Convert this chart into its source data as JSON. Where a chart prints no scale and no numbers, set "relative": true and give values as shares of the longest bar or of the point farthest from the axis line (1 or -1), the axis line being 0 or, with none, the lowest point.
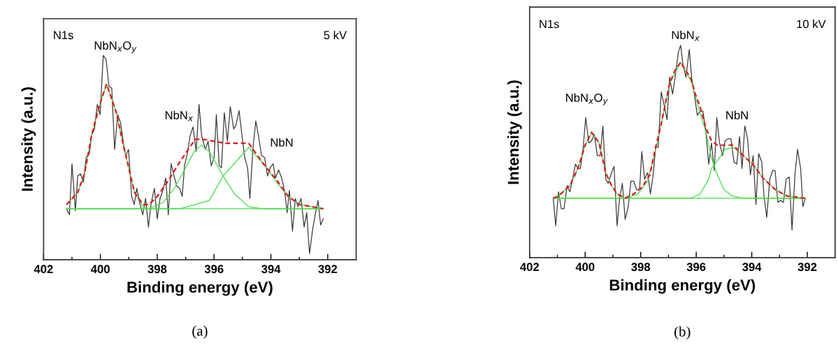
{
  "chart_data": [
    {
      "type": "line",
      "relative": true,
      "xlabel": "Binding energy (eV)",
      "ylabel": "Intensity (a.u.)",
      "xlim": [
        402,
        391
      ],
      "xticks": [
        402,
        {
          "value": 401,
          "label": null
        },
        400,
        {
          "value": 399,
          "label": null
        },
        398,
        {
          "value": 397,
          "label": null
        },
        396,
        {
          "value": 395,
          "label": null
        },
        394,
        {
          "value": 393,
          "label": null
        },
        392
      ],
      "tick_labels": "x",
      "grid": false,
      "legend": false,
      "marker": "none",
      "annotations": [
        "N1s",
        "5 kV",
        "(a)",
        "NbN$_{x}$O$_{y}$",
        "NbN$_{x}$",
        "NbN"
      ],
      "series": [
        {
          "color": "#3a3a3a",
          "line_style": "solid",
          "x": [
            401.19,
            401.09,
            401.0,
            400.88,
            400.8,
            400.7,
            400.6,
            400.5,
            400.39,
            400.31,
            400.21,
            400.11,
            400.01,
            399.9,
            399.8,
            399.7,
            399.6,
            399.5,
            399.39,
            399.29,
            399.19,
            399.11,
            399.01,
            398.9,
            398.81,
            398.72,
            398.62,
            398.51,
            398.41,
            398.31,
            398.21,
            398.1,
            398.0,
            397.9,
            397.8,
            397.7,
            397.61,
            397.51,
            397.41,
            397.31,
            397.21,
            397.12,
            397.04,
            396.94,
            396.84,
            396.74,
            396.63,
            396.53,
            396.44,
            396.31,
            396.21,
            396.1,
            396.0,
            395.92,
            395.82,
            395.74,
            395.64,
            395.53,
            395.43,
            395.31,
            395.23,
            395.12,
            395.02,
            394.92,
            394.82,
            394.74,
            394.63,
            394.53,
            394.43,
            394.33,
            394.22,
            394.12,
            394.03,
            393.92,
            393.84,
            393.73,
            393.62,
            393.51,
            393.43,
            393.35,
            393.24,
            393.14,
            393.05,
            392.94,
            392.83,
            392.74,
            392.64,
            392.53,
            392.43,
            392.34,
            392.25,
            392.16
          ],
          "values": [
            0.25,
            0.22,
            0.47,
            0.24,
            0.41,
            0.42,
            0.38,
            0.5,
            0.52,
            0.61,
            0.64,
            0.76,
            0.71,
            1.0,
            0.98,
            0.85,
            0.84,
            0.54,
            0.71,
            0.67,
            0.57,
            0.51,
            0.54,
            0.31,
            0.27,
            0.35,
            0.28,
            0.22,
            0.3,
            0.16,
            0.28,
            0.35,
            0.2,
            0.3,
            0.34,
            0.4,
            0.22,
            0.47,
            0.41,
            0.36,
            0.35,
            0.31,
            0.46,
            0.52,
            0.61,
            0.65,
            0.53,
            0.76,
            0.61,
            0.54,
            0.58,
            0.46,
            0.5,
            0.71,
            0.46,
            0.45,
            0.72,
            0.58,
            0.75,
            0.64,
            0.66,
            0.73,
            0.61,
            0.5,
            0.45,
            0.3,
            0.55,
            0.68,
            0.6,
            0.51,
            0.5,
            0.41,
            0.45,
            0.47,
            0.4,
            0.44,
            0.4,
            0.33,
            0.23,
            0.34,
            0.14,
            0.3,
            0.26,
            0.3,
            0.16,
            0.23,
            0.03,
            0.15,
            0.23,
            0.29,
            0.17,
            0.2
          ]
        },
        {
          "color": "#44dd44",
          "line_style": "solid",
          "x": [
            401.19,
            400.8,
            400.56,
            400.31,
            400.0,
            399.78,
            399.44,
            399.19,
            398.8,
            398.5,
            398.3,
            392.16
          ],
          "values": [
            0.27,
            0.33,
            0.42,
            0.61,
            0.77,
            0.86,
            0.72,
            0.56,
            0.33,
            0.26,
            0.25,
            0.25
          ]
        },
        {
          "color": "#44dd44",
          "line_style": "solid",
          "x": [
            401.19,
            398.3,
            397.8,
            397.4,
            397.0,
            396.7,
            396.45,
            396.17,
            395.68,
            395.27,
            394.78,
            394.3,
            392.16
          ],
          "values": [
            0.25,
            0.25,
            0.28,
            0.35,
            0.45,
            0.53,
            0.56,
            0.53,
            0.41,
            0.32,
            0.26,
            0.25,
            0.25
          ]
        },
        {
          "color": "#44dd44",
          "line_style": "solid",
          "x": [
            401.19,
            397.2,
            396.66,
            396.17,
            395.68,
            394.78,
            394.21,
            393.8,
            393.39,
            392.98,
            392.16
          ],
          "values": [
            0.25,
            0.25,
            0.27,
            0.29,
            0.41,
            0.55,
            0.46,
            0.38,
            0.31,
            0.27,
            0.25
          ]
        },
        {
          "color": "#e8141a",
          "line_style": "dashed",
          "x": [
            401.19,
            400.8,
            400.56,
            400.31,
            400.0,
            399.78,
            399.44,
            399.19,
            398.8,
            398.5,
            398.29,
            398.0,
            397.6,
            397.2,
            396.66,
            396.41,
            395.6,
            394.78,
            394.21,
            393.8,
            393.39,
            392.98,
            392.16
          ],
          "values": [
            0.27,
            0.33,
            0.42,
            0.61,
            0.77,
            0.86,
            0.72,
            0.56,
            0.33,
            0.27,
            0.27,
            0.31,
            0.39,
            0.48,
            0.59,
            0.59,
            0.57,
            0.57,
            0.46,
            0.39,
            0.31,
            0.27,
            0.25
          ]
        }
      ]
    },
    {
      "type": "line",
      "relative": true,
      "xlabel": "Binding energy (eV)",
      "ylabel": "Intensity (a.u.)",
      "xlim": [
        402,
        391
      ],
      "xticks": [
        402,
        {
          "value": 401,
          "label": null
        },
        400,
        {
          "value": 399,
          "label": null
        },
        398,
        {
          "value": 397,
          "label": null
        },
        396,
        {
          "value": 395,
          "label": null
        },
        394,
        {
          "value": 393,
          "label": null
        },
        392
      ],
      "tick_labels": "x",
      "grid": false,
      "legend": false,
      "marker": "none",
      "annotations": [
        "N1s",
        "10 kV",
        "(b)",
        "NbN$_{x}$O$_{y}$",
        "NbN$_{x}$",
        "NbN"
      ],
      "series": [
        {
          "color": "#3a3a3a",
          "line_style": "solid",
          "x": [
            401.15,
            401.06,
            400.96,
            400.86,
            400.76,
            400.65,
            400.55,
            400.45,
            400.35,
            400.26,
            400.17,
            400.07,
            399.98,
            399.87,
            399.77,
            399.67,
            399.56,
            399.46,
            399.36,
            399.26,
            399.17,
            399.05,
            398.96,
            398.85,
            398.76,
            398.66,
            398.56,
            398.45,
            398.35,
            398.25,
            398.15,
            398.04,
            397.96,
            397.86,
            397.75,
            397.65,
            397.56,
            397.46,
            397.37,
            397.26,
            397.16,
            397.05,
            396.96,
            396.85,
            396.77,
            396.64,
            396.56,
            396.48,
            396.37,
            396.25,
            396.16,
            396.07,
            395.96,
            395.86,
            395.76,
            395.65,
            395.55,
            395.45,
            395.35,
            395.26,
            395.16,
            395.05,
            394.96,
            394.86,
            394.75,
            394.64,
            394.54,
            394.44,
            394.35,
            394.25,
            394.15,
            394.05,
            393.95,
            393.85,
            393.75,
            393.64,
            393.56,
            393.46,
            393.35,
            393.25,
            393.16,
            393.06,
            392.96,
            392.86,
            392.76,
            392.65,
            392.55,
            392.44,
            392.35,
            392.24,
            392.16,
            392.07
          ],
          "values": [
            0.28,
            0.15,
            0.31,
            0.23,
            0.23,
            0.34,
            0.31,
            0.37,
            0.44,
            0.42,
            0.42,
            0.52,
            0.66,
            0.54,
            0.55,
            0.58,
            0.48,
            0.48,
            0.62,
            0.37,
            0.35,
            0.4,
            0.43,
            0.15,
            0.28,
            0.35,
            0.18,
            0.24,
            0.36,
            0.36,
            0.32,
            0.32,
            0.5,
            0.37,
            0.4,
            0.3,
            0.38,
            0.52,
            0.52,
            0.78,
            0.72,
            0.65,
            0.85,
            0.77,
            0.84,
            0.97,
            1.0,
            0.91,
            0.85,
            0.98,
            0.84,
            0.77,
            0.67,
            0.69,
            0.69,
            0.59,
            0.44,
            0.54,
            0.41,
            0.66,
            0.54,
            0.48,
            0.55,
            0.56,
            0.56,
            0.45,
            0.44,
            0.57,
            0.42,
            0.62,
            0.56,
            0.39,
            0.48,
            0.25,
            0.49,
            0.45,
            0.29,
            0.19,
            0.37,
            0.41,
            0.41,
            0.26,
            0.27,
            0.26,
            0.37,
            0.38,
            0.13,
            0.4,
            0.51,
            0.42,
            0.24,
            0.28
          ]
        },
        {
          "color": "#44dd44",
          "line_style": "solid",
          "x": [
            401.15,
            400.96,
            400.55,
            400.26,
            400.0,
            399.77,
            399.5,
            399.26,
            399.05,
            398.85,
            398.56,
            392.07
          ],
          "values": [
            0.28,
            0.29,
            0.34,
            0.42,
            0.53,
            0.59,
            0.54,
            0.4,
            0.34,
            0.3,
            0.28,
            0.28
          ]
        },
        {
          "color": "#44dd44",
          "line_style": "solid",
          "x": [
            401.15,
            398.5,
            398.1,
            397.75,
            397.46,
            397.26,
            396.96,
            396.56,
            396.18,
            395.9,
            395.65,
            395.45,
            395.24,
            395.0,
            394.7,
            394.3,
            392.07
          ],
          "values": [
            0.28,
            0.28,
            0.3,
            0.36,
            0.51,
            0.63,
            0.82,
            0.92,
            0.83,
            0.7,
            0.59,
            0.47,
            0.39,
            0.32,
            0.29,
            0.28,
            0.28
          ]
        },
        {
          "color": "#44dd44",
          "line_style": "solid",
          "x": [
            401.15,
            396.6,
            396.2,
            395.86,
            395.55,
            395.45,
            395.16,
            394.96,
            394.67,
            394.38,
            393.97,
            393.56,
            393.15,
            392.73,
            392.07
          ],
          "values": [
            0.28,
            0.28,
            0.28,
            0.3,
            0.37,
            0.42,
            0.47,
            0.51,
            0.52,
            0.49,
            0.44,
            0.37,
            0.32,
            0.29,
            0.28
          ]
        },
        {
          "color": "#e8141a",
          "line_style": "dashed",
          "x": [
            401.15,
            400.96,
            400.55,
            400.26,
            400.0,
            399.77,
            399.5,
            399.26,
            399.05,
            398.85,
            398.56,
            398.25,
            397.96,
            397.67,
            397.46,
            397.26,
            396.96,
            396.77,
            396.56,
            396.18,
            396.03,
            395.86,
            395.65,
            395.45,
            395.24,
            394.96,
            394.67,
            394.38,
            393.97,
            393.56,
            393.15,
            392.73,
            392.07
          ],
          "values": [
            0.28,
            0.29,
            0.34,
            0.42,
            0.53,
            0.59,
            0.54,
            0.4,
            0.34,
            0.3,
            0.28,
            0.3,
            0.33,
            0.39,
            0.52,
            0.63,
            0.82,
            0.88,
            0.92,
            0.84,
            0.77,
            0.71,
            0.61,
            0.55,
            0.53,
            0.53,
            0.53,
            0.49,
            0.44,
            0.37,
            0.32,
            0.29,
            0.28
          ]
        }
      ]
    }
  ]
}
